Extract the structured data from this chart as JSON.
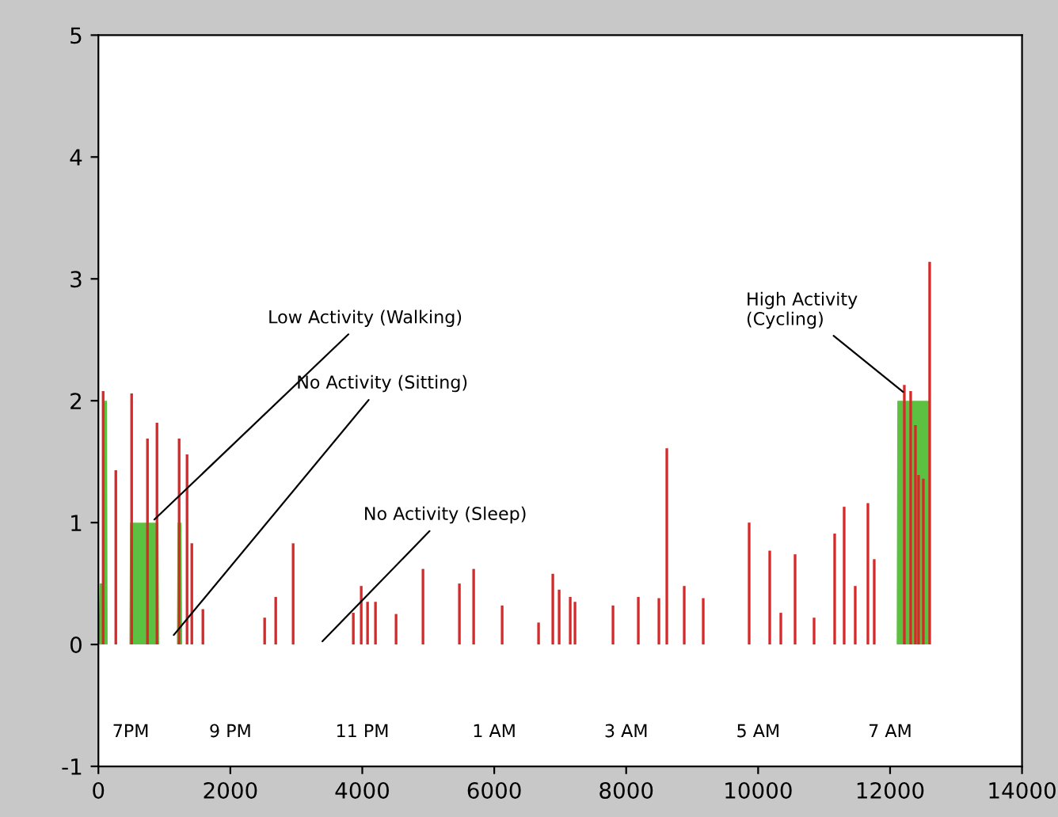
{
  "chart_data": {
    "type": "bar",
    "xlim": [
      0,
      14000
    ],
    "ylim": [
      -1,
      5
    ],
    "xticks": [
      0,
      2000,
      4000,
      6000,
      8000,
      10000,
      12000,
      14000
    ],
    "yticks": [
      -1,
      0,
      1,
      2,
      3,
      4,
      5
    ],
    "grid": false,
    "legend": false,
    "series": [
      {
        "type": "area",
        "color": "#5cc040",
        "x": [
          0,
          20,
          60,
          70,
          130,
          140,
          470,
          480,
          910,
          920,
          1190,
          1200,
          1260,
          1270,
          12100,
          12110,
          12600,
          12610
        ],
        "values": [
          0,
          0.5,
          0.5,
          2,
          2,
          0,
          0,
          1,
          1,
          0,
          0,
          1,
          1,
          0,
          0,
          2,
          2,
          0
        ]
      },
      {
        "color": "#d62a2a",
        "x": [
          72,
          264,
          504,
          744,
          888,
          1224,
          1344,
          1416,
          1584,
          2520,
          2688,
          2952,
          3864,
          3984,
          4080,
          4200,
          4512,
          4920,
          5472,
          5688,
          6120,
          6672,
          6888,
          6984,
          7152,
          7224,
          7800,
          8184,
          8496,
          8616,
          8880,
          9168,
          9864,
          10176,
          10344,
          10560,
          10848,
          11160,
          11304,
          11472,
          11664,
          11760,
          12216,
          12312,
          12384,
          12432,
          12504,
          12600
        ],
        "values": [
          2.08,
          1.43,
          2.06,
          1.69,
          1.82,
          1.69,
          1.56,
          0.83,
          0.29,
          0.22,
          0.39,
          0.83,
          0.26,
          0.48,
          0.35,
          0.35,
          0.25,
          0.62,
          0.5,
          0.62,
          0.32,
          0.18,
          0.58,
          0.45,
          0.39,
          0.35,
          0.32,
          0.39,
          0.38,
          1.61,
          0.48,
          0.38,
          1.0,
          0.77,
          0.26,
          0.74,
          0.22,
          0.91,
          1.13,
          0.48,
          1.16,
          0.7,
          2.13,
          2.08,
          1.8,
          1.39,
          1.36,
          3.14
        ]
      }
    ],
    "annotations": [
      {
        "text": "Low Activity (Walking)",
        "x": 800,
        "y": 1.0
      },
      {
        "text": "No Activity (Sitting)",
        "x": 1100,
        "y": 0.05
      },
      {
        "text": "No Activity (Sleep)",
        "x": 3350,
        "y": 0
      },
      {
        "text": "High Activity\n(Cycling)",
        "x": 12250,
        "y": 2.05
      },
      "7PM",
      "9 PM",
      "11 PM",
      "1 AM",
      "3 AM",
      "5 AM",
      "7 AM"
    ]
  }
}
